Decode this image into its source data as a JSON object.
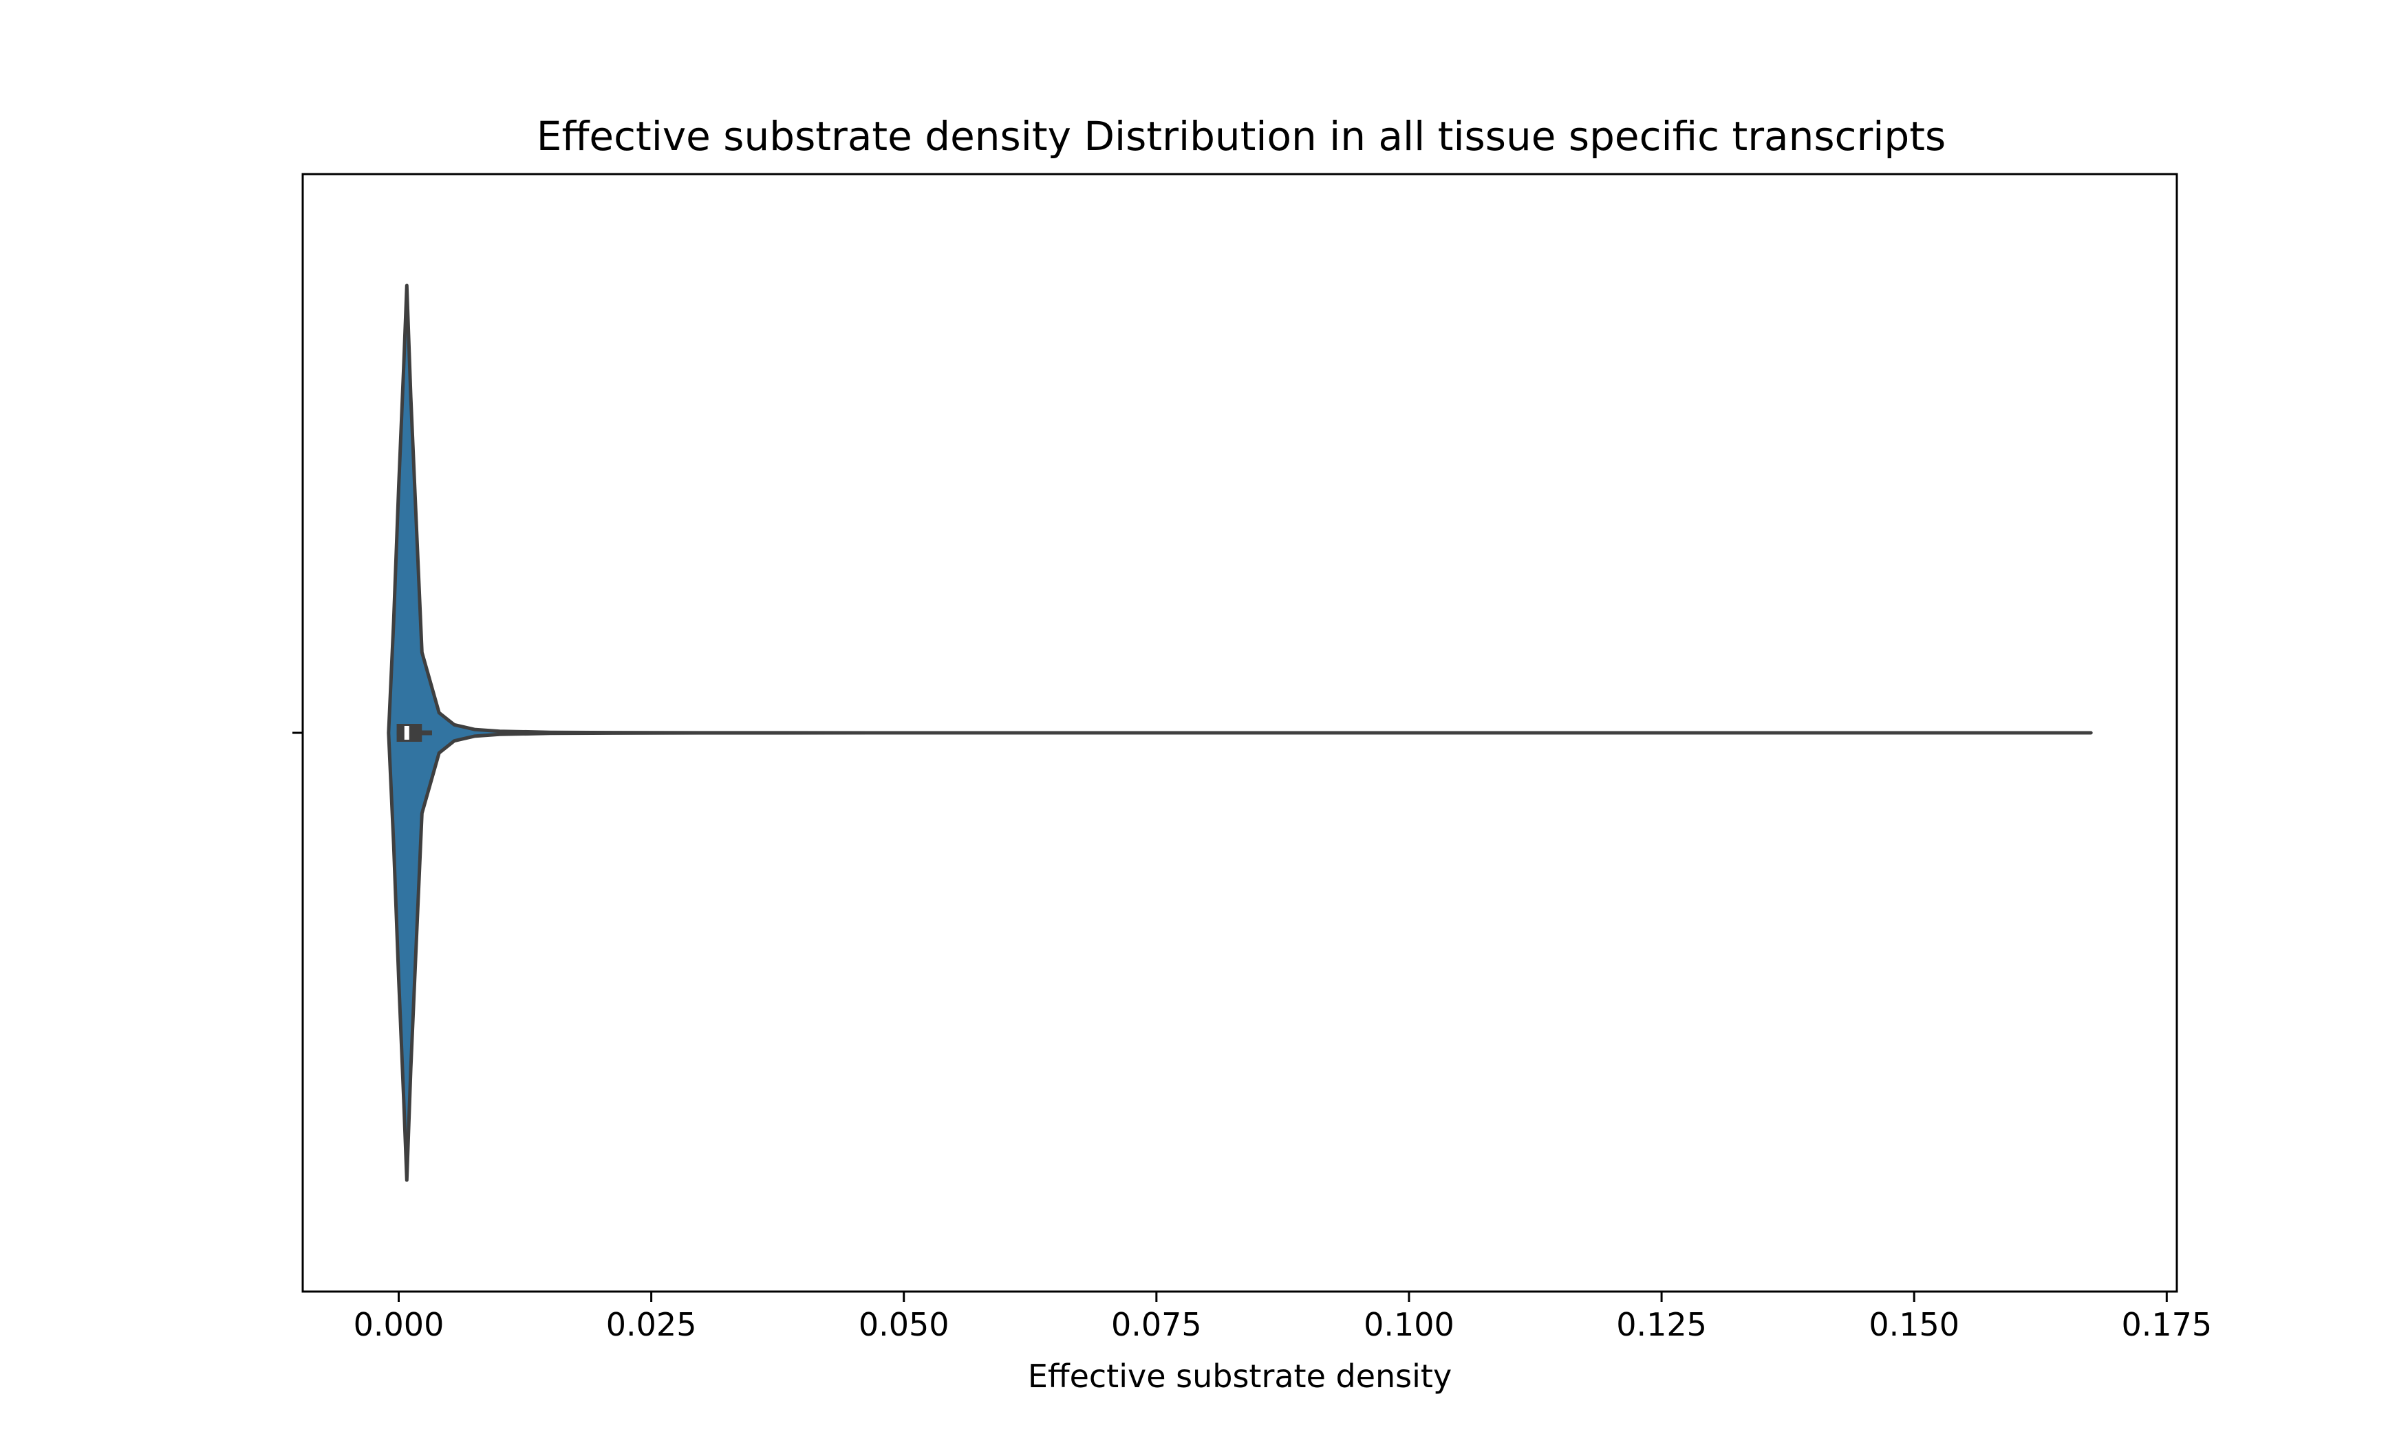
{
  "chart_data": {
    "type": "violin",
    "title": "Effective substrate density Distribution in all tissue specific transcripts",
    "xlabel": "Effective substrate density",
    "ylabel": "",
    "xlim": [
      -0.0095,
      0.176
    ],
    "xticks": [
      0.0,
      0.025,
      0.05,
      0.075,
      0.1,
      0.125,
      0.15,
      0.175
    ],
    "xtick_labels": [
      "0.000",
      "0.025",
      "0.050",
      "0.075",
      "0.100",
      "0.125",
      "0.150",
      "0.175"
    ],
    "grid": false,
    "orientation": "horizontal",
    "series": [
      {
        "min": -0.001,
        "max": 0.1675,
        "q1": -0.0002,
        "median": 0.0008,
        "q3": 0.0023,
        "whisker_low": -0.0002,
        "whisker_high": 0.0033,
        "density_profile": [
          [
            -0.001,
            0.0
          ],
          [
            -0.0005,
            0.25
          ],
          [
            0.0,
            0.55
          ],
          [
            0.0005,
            0.82
          ],
          [
            0.0008,
            1.0
          ],
          [
            0.0012,
            0.75
          ],
          [
            0.0023,
            0.18
          ],
          [
            0.004,
            0.045
          ],
          [
            0.0055,
            0.018
          ],
          [
            0.0075,
            0.0075
          ],
          [
            0.01,
            0.0035
          ],
          [
            0.015,
            0.0012
          ],
          [
            0.025,
            0.0003
          ],
          [
            0.05,
            0.0
          ],
          [
            0.1675,
            0.0
          ]
        ]
      }
    ],
    "colors": {
      "fill": "#3274a1",
      "edge": "#3f3f3f",
      "box": "#3f3f3f",
      "median": "#ffffff",
      "axes": "#000000"
    }
  }
}
